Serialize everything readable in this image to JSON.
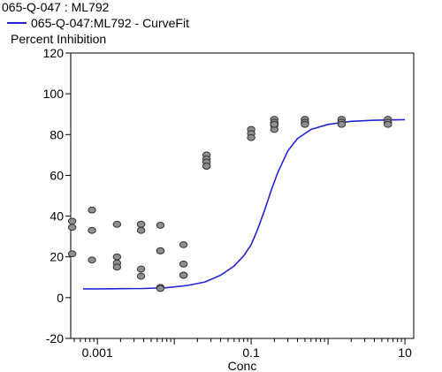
{
  "header": {
    "title": "065-Q-047  : ML792",
    "legend_label": "065-Q-047:ML792 - CurveFit",
    "series_color": "#2323d6"
  },
  "chart_data": {
    "type": "scatter",
    "title": "065-Q-047  : ML792",
    "xlabel": "Conc",
    "ylabel": "Percent Inhibition",
    "x_scale": "log",
    "xlim": [
      0.00045,
      13
    ],
    "ylim": [
      -20,
      120
    ],
    "x_ticks": [
      {
        "value": 0.001,
        "label": "0.001"
      },
      {
        "value": 0.1,
        "label": "0.1"
      },
      {
        "value": 10,
        "label": "10"
      }
    ],
    "y_ticks": [
      -20,
      0,
      20,
      40,
      60,
      80,
      100,
      120
    ],
    "grid": false,
    "series": [
      {
        "name": "065-Q-047:ML792 - CurveFit",
        "kind": "line",
        "color": "#2323d6",
        "x": [
          0.00065,
          0.001,
          0.002,
          0.004,
          0.008,
          0.015,
          0.025,
          0.04,
          0.06,
          0.08,
          0.1,
          0.12,
          0.15,
          0.18,
          0.22,
          0.3,
          0.4,
          0.6,
          1,
          2,
          4,
          10
        ],
        "y": [
          4.3,
          4.3,
          4.4,
          4.5,
          4.9,
          6.0,
          7.7,
          11.0,
          15.5,
          20.5,
          26.0,
          33.0,
          43.0,
          52.0,
          61.0,
          72.0,
          78.0,
          82.5,
          85.0,
          86.5,
          87.0,
          87.3
        ]
      },
      {
        "kind": "points",
        "x": [
          0.00047,
          0.00047,
          0.00047,
          0.00085,
          0.00085,
          0.00085,
          0.0018,
          0.0018,
          0.0018,
          0.0018,
          0.0037,
          0.0037,
          0.0037,
          0.0037,
          0.0037,
          0.0066,
          0.0066,
          0.0066,
          0.0066,
          0.0066,
          0.0132,
          0.0132,
          0.0132,
          0.0132,
          0.0132,
          0.0263,
          0.0263,
          0.0263,
          0.0263,
          0.0263,
          0.1,
          0.1,
          0.1,
          0.2,
          0.2,
          0.2,
          0.2,
          0.2,
          0.5,
          0.5,
          0.5,
          1.5,
          1.5,
          1.5,
          6.0,
          6.0,
          6.0
        ],
        "y": [
          37.5,
          34.5,
          21.5,
          43,
          33,
          18.5,
          36,
          20,
          17,
          15,
          36,
          33,
          14,
          10.5,
          36,
          23,
          5,
          4.5,
          35.5,
          23,
          26,
          16.5,
          11,
          11,
          11,
          70,
          68,
          66.5,
          64.5,
          64.5,
          82.5,
          80.5,
          78.5,
          84.5,
          82.5,
          87.5,
          86,
          85,
          87.5,
          86,
          85,
          87.5,
          86,
          85,
          87.5,
          86,
          85
        ]
      }
    ]
  }
}
